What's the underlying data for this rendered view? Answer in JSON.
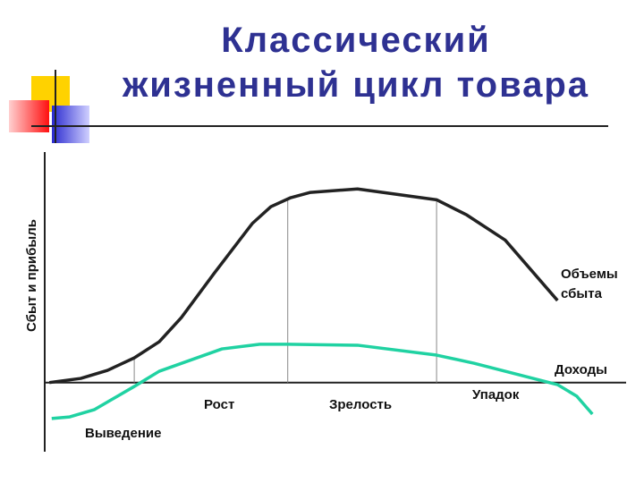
{
  "chart_data": {
    "type": "line",
    "title": "Классический жизненный цикл товара",
    "y_label": "Сбыт и прибыль",
    "xlim": [
      0,
      100
    ],
    "ylim": [
      -30,
      100
    ],
    "series": [
      {
        "name": "Объемы сбыта",
        "color": "#222222",
        "x": [
          0.8,
          6.2,
          10.8,
          15.4,
          19.7,
          23.5,
          29.2,
          35.7,
          38.9,
          42.3,
          45.7,
          53.8,
          67.4,
          72.6,
          79.2,
          88.2
        ],
        "values": [
          0,
          1.8,
          5.3,
          10.7,
          17.7,
          28.2,
          47.6,
          69,
          76.3,
          80.2,
          82.5,
          84,
          79.3,
          72.7,
          61.8,
          35.6
        ]
      },
      {
        "name": "Доходы",
        "color": "#20d2a2",
        "x": [
          1.2,
          4.3,
          8.5,
          15.4,
          19.7,
          30.5,
          37,
          41.8,
          53.8,
          67.4,
          73.8,
          88.2,
          91.5,
          94.2
        ],
        "values": [
          -15.6,
          -14.9,
          -11.8,
          -1.7,
          4.9,
          14.6,
          16.6,
          16.6,
          16.2,
          11.9,
          8.4,
          -0.9,
          -5.9,
          -13.7
        ]
      }
    ],
    "phase_boundaries": [
      15.4,
      41.8,
      67.4
    ],
    "phases": [
      "Выведение",
      "Рост",
      "Зрелость",
      "Упадок"
    ]
  }
}
